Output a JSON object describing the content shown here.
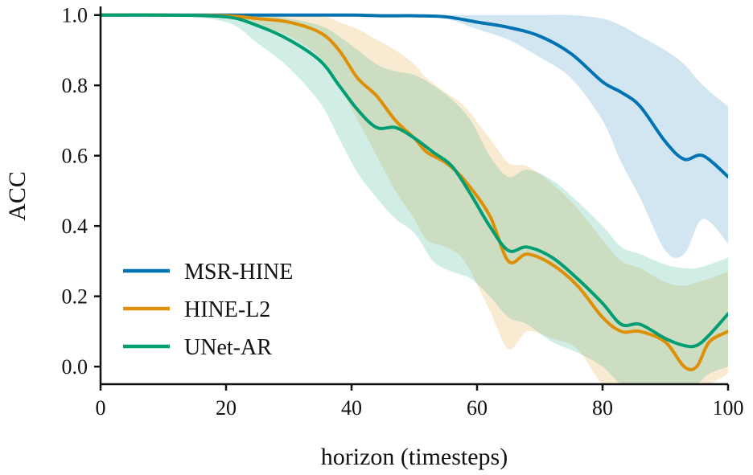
{
  "chart_data": {
    "type": "line",
    "title": "",
    "xlabel": "horizon (timesteps)",
    "ylabel": "ACC",
    "xlim": [
      0,
      100
    ],
    "ylim": [
      -0.05,
      1.02
    ],
    "xticks": [
      0,
      20,
      40,
      60,
      80,
      100
    ],
    "yticks": [
      0.0,
      0.2,
      0.4,
      0.6,
      0.8,
      1.0
    ],
    "xtick_labels": [
      "0",
      "20",
      "40",
      "60",
      "80",
      "100"
    ],
    "ytick_labels": [
      "0.0",
      "0.2",
      "0.4",
      "0.6",
      "0.8",
      "1.0"
    ],
    "grid": false,
    "legend_position": "lower-left",
    "series": [
      {
        "name": "MSR-HINE",
        "color": "#0173b2",
        "x": [
          0,
          10,
          20,
          30,
          40,
          45,
          50,
          55,
          60,
          65,
          70,
          75,
          80,
          83,
          86,
          90,
          93,
          96,
          100
        ],
        "mean": [
          1.0,
          1.0,
          1.0,
          1.0,
          1.0,
          0.998,
          0.998,
          0.995,
          0.98,
          0.965,
          0.94,
          0.89,
          0.81,
          0.78,
          0.74,
          0.64,
          0.59,
          0.6,
          0.54
        ],
        "lower": [
          1.0,
          1.0,
          1.0,
          1.0,
          1.0,
          0.998,
          0.998,
          0.99,
          0.96,
          0.93,
          0.88,
          0.82,
          0.7,
          0.58,
          0.48,
          0.33,
          0.32,
          0.42,
          0.35
        ],
        "upper": [
          1.0,
          1.0,
          1.0,
          1.0,
          1.0,
          1.0,
          1.0,
          1.0,
          1.0,
          1.0,
          1.0,
          1.0,
          0.99,
          0.97,
          0.94,
          0.9,
          0.86,
          0.8,
          0.74
        ]
      },
      {
        "name": "HINE-L2",
        "color": "#de8f05",
        "x": [
          0,
          10,
          20,
          25,
          30,
          35,
          38,
          41,
          44,
          47,
          50,
          52,
          55,
          58,
          62,
          65,
          68,
          72,
          76,
          80,
          83,
          86,
          90,
          93,
          95,
          97,
          100
        ],
        "mean": [
          1.0,
          1.0,
          0.998,
          0.99,
          0.98,
          0.95,
          0.9,
          0.82,
          0.77,
          0.7,
          0.65,
          0.61,
          0.58,
          0.53,
          0.43,
          0.3,
          0.32,
          0.29,
          0.23,
          0.14,
          0.1,
          0.1,
          0.07,
          0.0,
          0.0,
          0.07,
          0.1
        ],
        "lower": [
          1.0,
          1.0,
          0.99,
          0.97,
          0.94,
          0.88,
          0.8,
          0.7,
          0.6,
          0.5,
          0.42,
          0.36,
          0.34,
          0.3,
          0.16,
          0.05,
          0.1,
          0.08,
          0.05,
          -0.05,
          -0.05,
          -0.05,
          -0.05,
          -0.05,
          -0.05,
          -0.05,
          -0.02
        ],
        "upper": [
          1.0,
          1.0,
          1.0,
          1.0,
          1.0,
          1.0,
          0.98,
          0.96,
          0.93,
          0.9,
          0.86,
          0.82,
          0.78,
          0.74,
          0.65,
          0.58,
          0.57,
          0.52,
          0.45,
          0.36,
          0.3,
          0.28,
          0.24,
          0.23,
          0.24,
          0.25,
          0.27
        ]
      },
      {
        "name": "UNet-AR",
        "color": "#029e73",
        "x": [
          0,
          10,
          20,
          25,
          30,
          35,
          38,
          41,
          44,
          47,
          50,
          53,
          56,
          59,
          62,
          65,
          68,
          72,
          76,
          80,
          83,
          86,
          90,
          93,
          95,
          97,
          100
        ],
        "mean": [
          1.0,
          1.0,
          0.995,
          0.97,
          0.93,
          0.87,
          0.8,
          0.73,
          0.68,
          0.68,
          0.65,
          0.61,
          0.57,
          0.49,
          0.4,
          0.33,
          0.34,
          0.31,
          0.25,
          0.18,
          0.12,
          0.12,
          0.08,
          0.06,
          0.06,
          0.09,
          0.15
        ],
        "lower": [
          1.0,
          1.0,
          0.98,
          0.92,
          0.85,
          0.75,
          0.65,
          0.55,
          0.48,
          0.42,
          0.38,
          0.3,
          0.27,
          0.25,
          0.2,
          0.14,
          0.12,
          0.07,
          0.04,
          0.0,
          -0.05,
          -0.05,
          -0.05,
          -0.05,
          -0.05,
          -0.02,
          0.0
        ],
        "upper": [
          1.0,
          1.0,
          1.0,
          1.0,
          0.99,
          0.97,
          0.94,
          0.9,
          0.86,
          0.84,
          0.83,
          0.8,
          0.76,
          0.7,
          0.6,
          0.54,
          0.56,
          0.53,
          0.47,
          0.4,
          0.34,
          0.32,
          0.29,
          0.28,
          0.28,
          0.29,
          0.31
        ]
      }
    ]
  }
}
